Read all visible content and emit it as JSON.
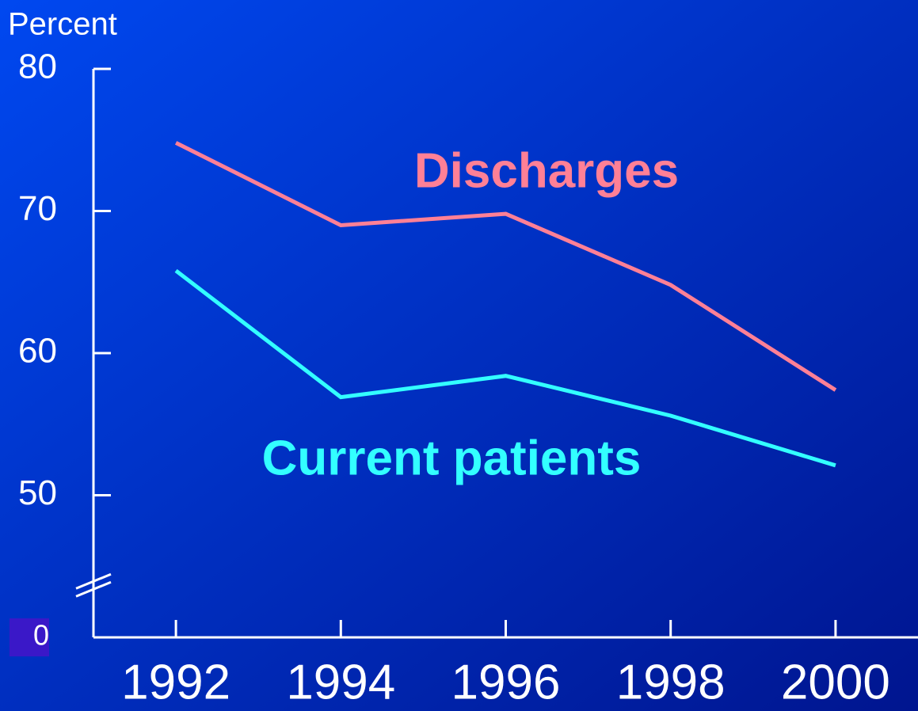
{
  "chart_data": {
    "type": "line",
    "y_label": "Percent",
    "x": [
      1992,
      1994,
      1996,
      1998,
      2000
    ],
    "xlim": [
      1991,
      2001
    ],
    "xticks": [
      1992,
      1994,
      1996,
      1998,
      2000
    ],
    "ylim": [
      0,
      80
    ],
    "yticks": [
      0,
      50,
      60,
      70,
      80
    ],
    "axis_break": true,
    "series": [
      {
        "name": "Discharges",
        "color": "#ff8096",
        "values": [
          74.8,
          69.0,
          69.8,
          64.8,
          57.4
        ]
      },
      {
        "name": "Current patients",
        "color": "#33ffff",
        "values": [
          65.8,
          56.9,
          58.4,
          55.6,
          52.1
        ]
      }
    ]
  }
}
